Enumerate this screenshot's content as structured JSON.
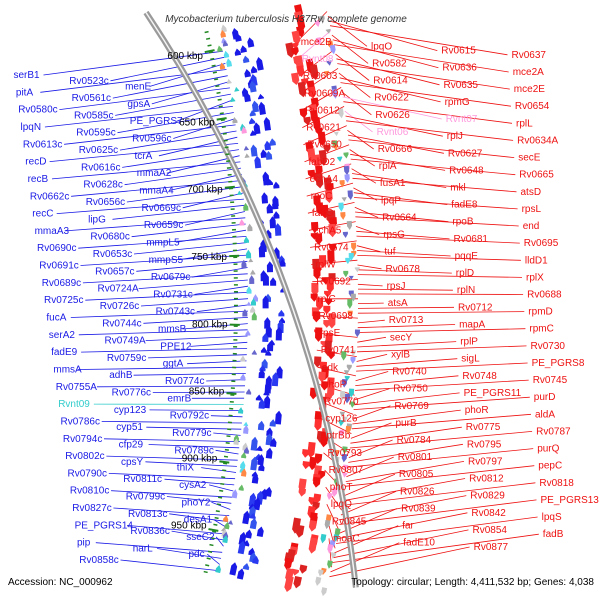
{
  "title": "Mycobacterium tuberculosis H37Rv, complete genome",
  "footer": {
    "accession": "Accession: NC_000962",
    "summary": "Topology: circular; Length: 4,411,532 bp; Genes: 4,038"
  },
  "colors": {
    "forward": "#ee1111",
    "reverse": "#1a1ae6",
    "rna": "#ff99dd",
    "trna_rev": "#33cccc",
    "backbone": "#888888",
    "tick": "#228822"
  },
  "kbp_marks": [
    "600 kbp",
    "650 kbp",
    "700 kbp",
    "750 kbp",
    "800 kbp",
    "850 kbp",
    "900 kbp",
    "950 kbp"
  ],
  "right_labels": [
    "mce2B",
    "lpqO",
    "Rv0615",
    "Rv0637",
    "Rvnt08",
    "Rv0582",
    "Rv0636",
    "mce2A",
    "Rv0603",
    "Rv0614",
    "Rv0635",
    "mce2E",
    "Rv0609A",
    "Rv0622",
    "rpmG",
    "Rv0654",
    "Rv0612",
    "Rv0626",
    "Rvnt07",
    "rplL",
    "Rv0621",
    "Rvnt06",
    "rplJ",
    "Rv0634A",
    "Rv0650",
    "Rv0666",
    "Rv0627",
    "secE",
    "fabD2",
    "rplA",
    "Rv0648",
    "Rv0665",
    "echA4",
    "fusA1",
    "mkl",
    "atsD",
    "rpoC",
    "lpqP",
    "fadE8",
    "rpsL",
    "fabG",
    "Rv0664",
    "rpoB",
    "end",
    "echA5",
    "rpsG",
    "Rv0681",
    "Rv0695",
    "Rv0674",
    "tuf",
    "pqqE",
    "lldD1",
    "rplW",
    "Rv0678",
    "rplD",
    "rplX",
    "Rv0692",
    "rpsJ",
    "rplN",
    "Rv0688",
    "rplC",
    "atsA",
    "Rv0712",
    "rpmD",
    "Rv0698",
    "Rv0713",
    "mapA",
    "rpmC",
    "rpsE",
    "secY",
    "rplP",
    "Rv0730",
    "Rv0741",
    "xylB",
    "sigL",
    "PE_PGRS8",
    "adk",
    "Rv0740",
    "Rv0748",
    "Rv0745",
    "phoP",
    "Rv0750",
    "PE_PGRS11",
    "purD",
    "Rv0770",
    "Rv0769",
    "phoR",
    "aldA",
    "cyp126",
    "purB",
    "Rv0775",
    "Rv0787",
    "ptrBb",
    "Rv0784",
    "Rv0795",
    "purQ",
    "Rv0793",
    "Rv0801",
    "Rv0797",
    "pepC",
    "Rv0807",
    "Rv0805",
    "Rv0812",
    "Rv0818",
    "phoT",
    "Rv0826",
    "Rv0829",
    "PE_PGRS13",
    "lpqQ",
    "Rv0839",
    "Rv0842",
    "lpqS",
    "Rv0845",
    "far",
    "Rv0854",
    "fadB",
    "moaC",
    "fadE10",
    "Rv0877"
  ],
  "left_labels": [
    "serB1",
    "Rv0523c",
    "menE",
    "pitA",
    "Rv0561c",
    "gpsA",
    "Rv0580c",
    "Rv0585c",
    "PE_PGRS7",
    "lpqN",
    "Rv0595c",
    "Rv0596c",
    "Rv0613c",
    "Rv0625c",
    "tcrA",
    "recD",
    "Rv0616c",
    "mmaA2",
    "recB",
    "Rv0628c",
    "mmaA4",
    "Rv0662c",
    "Rv0656c",
    "Rv0669c",
    "recC",
    "lipG",
    "Rv0659c",
    "mmaA3",
    "Rv0680c",
    "mmpL5",
    "Rv0690c",
    "Rv0653c",
    "mmpS5",
    "Rv0691c",
    "Rv0657c",
    "Rv0679c",
    "Rv0689c",
    "Rv0724A",
    "Rv0731c",
    "Rv0725c",
    "Rv0726c",
    "Rv0743c",
    "fucA",
    "Rv0744c",
    "mmsB",
    "serA2",
    "Rv0749A",
    "PPE12",
    "fadE9",
    "Rv0759c",
    "ggtA",
    "mmsA",
    "adhB",
    "Rv0774c",
    "Rv0755A",
    "Rv0776c",
    "emrB",
    "Rvnt09",
    "cyp123",
    "Rv0792c",
    "Rv0786c",
    "cyp51",
    "Rv0779c",
    "Rv0794c",
    "cfp29",
    "Rv0789c",
    "Rv0802c",
    "cpsY",
    "thiX",
    "Rv0790c",
    "Rv0811c",
    "cysA2",
    "Rv0810c",
    "Rv0799c",
    "phoY2",
    "Rv0827c",
    "Rv0813c",
    "desA1",
    "PE_PGRS14",
    "Rv0836c",
    "sseC2",
    "pip",
    "narL",
    "pdc",
    "Rv0858c"
  ]
}
